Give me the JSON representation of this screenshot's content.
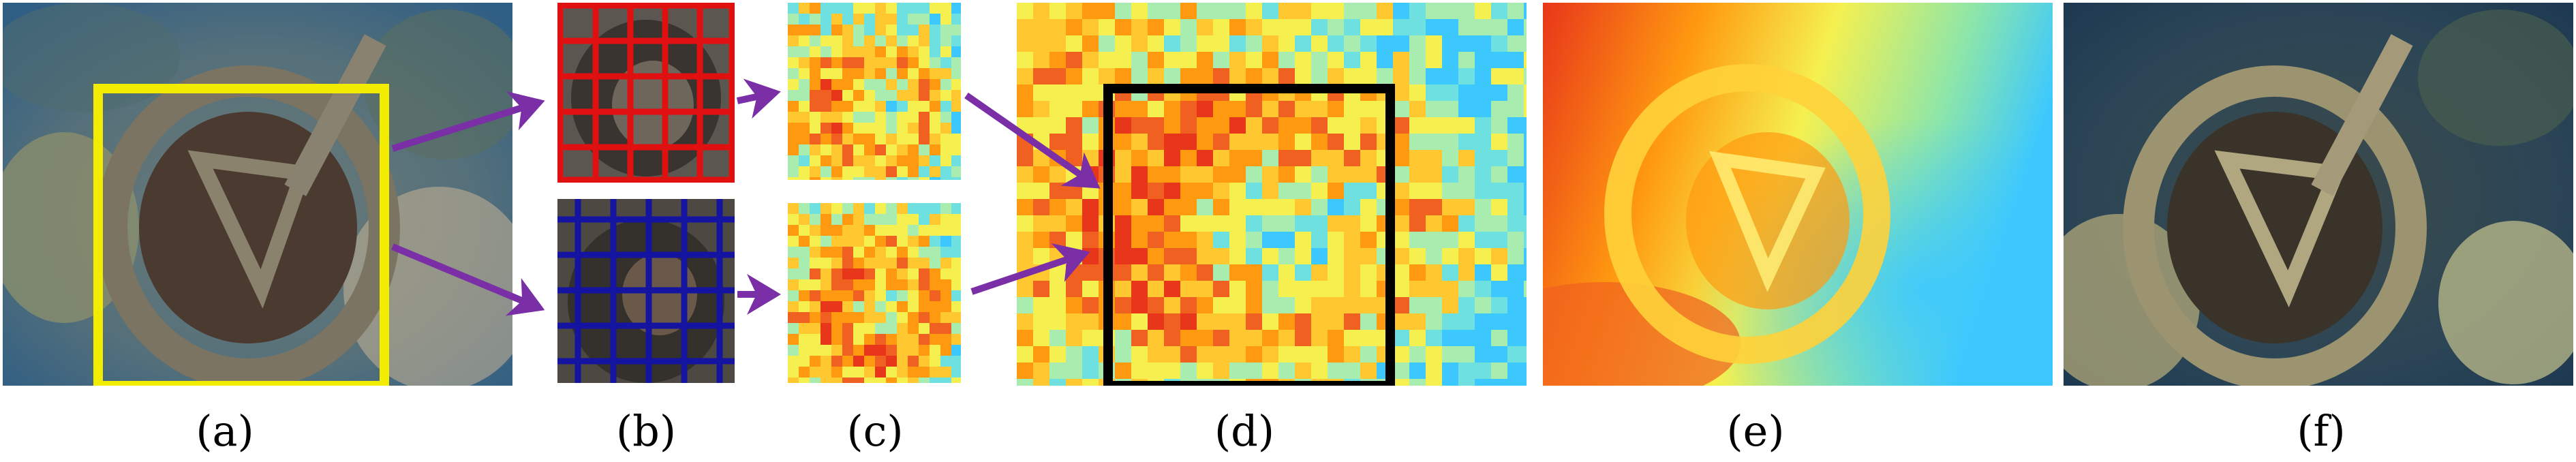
{
  "labels": [
    "(a)",
    "(b)",
    "(c)",
    "(d)",
    "(e)",
    "(f)"
  ],
  "colors": {
    "yellow_box": "#f2ec00",
    "red_grid": "#e01010",
    "blue_grid": "#1414a0",
    "arrow": "#7b2fa6",
    "black_box": "#000000",
    "water": "#3a6f8f",
    "jet_low": "#3cc8ff",
    "jet_mid": "#f5f050",
    "jet_high": "#e8361a"
  },
  "icons": [
    "underwater-wheel-photo",
    "grid-overlay",
    "heatmap",
    "arrow"
  ]
}
